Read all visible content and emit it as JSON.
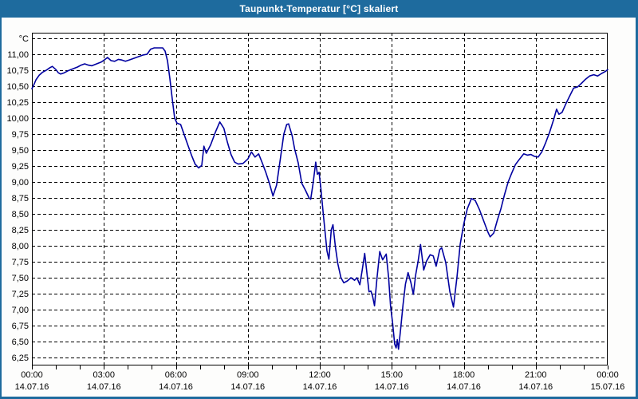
{
  "window": {
    "title": "Taupunkt-Temperatur [°C] skaliert",
    "chrome_color": "#1e6b9e",
    "background_color": "#fdfdfc"
  },
  "chart_data": {
    "type": "line",
    "title": "Taupunkt-Temperatur [°C] skaliert",
    "grid": "dashed",
    "legend_position": "none",
    "y_axis": {
      "unit_label": "°C",
      "min": 6.25,
      "max": 11.25,
      "tick_step": 0.25,
      "tick_values": [
        11.0,
        10.75,
        10.5,
        10.25,
        10.0,
        9.75,
        9.5,
        9.25,
        9.0,
        8.75,
        8.5,
        8.25,
        8.0,
        7.75,
        7.5,
        7.25,
        7.0,
        6.75,
        6.5,
        6.25
      ],
      "tick_labels": [
        "11,00",
        "10,75",
        "10,50",
        "10,25",
        "10,00",
        "9,75",
        "9,50",
        "9,25",
        "9,00",
        "8,75",
        "8,50",
        "8,25",
        "8,00",
        "7,75",
        "7,50",
        "7,25",
        "7,00",
        "6,75",
        "6,50",
        "6,25"
      ]
    },
    "x_axis": {
      "range_hours": [
        0,
        24
      ],
      "minor_tick_every_hours": 1,
      "major_tick_every_hours": 3,
      "ticks": [
        {
          "hour": 0,
          "time": "00:00",
          "date": "14.07.16"
        },
        {
          "hour": 3,
          "time": "03:00",
          "date": "14.07.16"
        },
        {
          "hour": 6,
          "time": "06:00",
          "date": "14.07.16"
        },
        {
          "hour": 9,
          "time": "09:00",
          "date": "14.07.16"
        },
        {
          "hour": 12,
          "time": "12:00",
          "date": "14.07.16"
        },
        {
          "hour": 15,
          "time": "15:00",
          "date": "14.07.16"
        },
        {
          "hour": 18,
          "time": "18:00",
          "date": "14.07.16"
        },
        {
          "hour": 21,
          "time": "21:00",
          "date": "14.07.16"
        },
        {
          "hour": 24,
          "time": "00:00",
          "date": "15.07.16"
        }
      ]
    },
    "series": [
      {
        "name": "Taupunkt-Temperatur",
        "color": "#0000a0",
        "points": [
          [
            0.0,
            10.46
          ],
          [
            0.08,
            10.52
          ],
          [
            0.17,
            10.6
          ],
          [
            0.3,
            10.67
          ],
          [
            0.45,
            10.72
          ],
          [
            0.6,
            10.75
          ],
          [
            0.75,
            10.79
          ],
          [
            0.85,
            10.81
          ],
          [
            1.0,
            10.76
          ],
          [
            1.1,
            10.71
          ],
          [
            1.2,
            10.69
          ],
          [
            1.35,
            10.71
          ],
          [
            1.5,
            10.74
          ],
          [
            1.7,
            10.77
          ],
          [
            1.9,
            10.8
          ],
          [
            2.05,
            10.83
          ],
          [
            2.2,
            10.85
          ],
          [
            2.35,
            10.83
          ],
          [
            2.5,
            10.82
          ],
          [
            2.7,
            10.85
          ],
          [
            2.9,
            10.88
          ],
          [
            3.05,
            10.92
          ],
          [
            3.15,
            10.95
          ],
          [
            3.3,
            10.9
          ],
          [
            3.45,
            10.89
          ],
          [
            3.6,
            10.92
          ],
          [
            3.75,
            10.91
          ],
          [
            3.9,
            10.89
          ],
          [
            4.05,
            10.91
          ],
          [
            4.2,
            10.93
          ],
          [
            4.35,
            10.95
          ],
          [
            4.5,
            10.97
          ],
          [
            4.65,
            10.99
          ],
          [
            4.8,
            11.0
          ],
          [
            4.95,
            11.08
          ],
          [
            5.1,
            11.1
          ],
          [
            5.3,
            11.1
          ],
          [
            5.45,
            11.1
          ],
          [
            5.55,
            11.05
          ],
          [
            5.65,
            10.9
          ],
          [
            5.75,
            10.62
          ],
          [
            5.85,
            10.3
          ],
          [
            5.95,
            10.0
          ],
          [
            6.05,
            9.92
          ],
          [
            6.2,
            9.9
          ],
          [
            6.35,
            9.74
          ],
          [
            6.5,
            9.58
          ],
          [
            6.65,
            9.42
          ],
          [
            6.8,
            9.28
          ],
          [
            6.95,
            9.22
          ],
          [
            7.08,
            9.26
          ],
          [
            7.17,
            9.56
          ],
          [
            7.27,
            9.45
          ],
          [
            7.45,
            9.58
          ],
          [
            7.65,
            9.78
          ],
          [
            7.83,
            9.94
          ],
          [
            8.0,
            9.84
          ],
          [
            8.15,
            9.62
          ],
          [
            8.3,
            9.43
          ],
          [
            8.45,
            9.31
          ],
          [
            8.6,
            9.28
          ],
          [
            8.8,
            9.29
          ],
          [
            9.0,
            9.36
          ],
          [
            9.15,
            9.47
          ],
          [
            9.3,
            9.39
          ],
          [
            9.45,
            9.44
          ],
          [
            9.6,
            9.3
          ],
          [
            9.75,
            9.15
          ],
          [
            9.9,
            8.98
          ],
          [
            10.05,
            8.78
          ],
          [
            10.2,
            8.95
          ],
          [
            10.35,
            9.35
          ],
          [
            10.5,
            9.75
          ],
          [
            10.62,
            9.9
          ],
          [
            10.7,
            9.91
          ],
          [
            10.85,
            9.72
          ],
          [
            10.95,
            9.52
          ],
          [
            11.1,
            9.3
          ],
          [
            11.25,
            8.98
          ],
          [
            11.4,
            8.87
          ],
          [
            11.55,
            8.75
          ],
          [
            11.62,
            8.73
          ],
          [
            11.72,
            8.98
          ],
          [
            11.83,
            9.31
          ],
          [
            11.9,
            9.12
          ],
          [
            11.97,
            9.15
          ],
          [
            12.05,
            8.88
          ],
          [
            12.15,
            8.48
          ],
          [
            12.3,
            7.92
          ],
          [
            12.38,
            7.79
          ],
          [
            12.48,
            8.25
          ],
          [
            12.55,
            8.33
          ],
          [
            12.65,
            7.98
          ],
          [
            12.75,
            7.72
          ],
          [
            12.88,
            7.5
          ],
          [
            13.0,
            7.42
          ],
          [
            13.15,
            7.45
          ],
          [
            13.3,
            7.5
          ],
          [
            13.45,
            7.46
          ],
          [
            13.55,
            7.5
          ],
          [
            13.67,
            7.39
          ],
          [
            13.77,
            7.62
          ],
          [
            13.87,
            7.88
          ],
          [
            13.97,
            7.55
          ],
          [
            14.05,
            7.28
          ],
          [
            14.13,
            7.29
          ],
          [
            14.2,
            7.21
          ],
          [
            14.28,
            7.06
          ],
          [
            14.38,
            7.48
          ],
          [
            14.5,
            7.91
          ],
          [
            14.62,
            7.78
          ],
          [
            14.77,
            7.87
          ],
          [
            14.87,
            7.5
          ],
          [
            14.95,
            7.06
          ],
          [
            15.03,
            6.8
          ],
          [
            15.12,
            6.46
          ],
          [
            15.18,
            6.4
          ],
          [
            15.23,
            6.53
          ],
          [
            15.28,
            6.38
          ],
          [
            15.37,
            6.7
          ],
          [
            15.47,
            7.08
          ],
          [
            15.57,
            7.4
          ],
          [
            15.68,
            7.58
          ],
          [
            15.8,
            7.42
          ],
          [
            15.9,
            7.24
          ],
          [
            16.0,
            7.55
          ],
          [
            16.1,
            7.76
          ],
          [
            16.2,
            8.02
          ],
          [
            16.33,
            7.62
          ],
          [
            16.45,
            7.76
          ],
          [
            16.6,
            7.86
          ],
          [
            16.73,
            7.84
          ],
          [
            16.85,
            7.68
          ],
          [
            17.0,
            7.94
          ],
          [
            17.08,
            7.97
          ],
          [
            17.25,
            7.74
          ],
          [
            17.42,
            7.28
          ],
          [
            17.57,
            7.04
          ],
          [
            17.72,
            7.52
          ],
          [
            17.85,
            8.02
          ],
          [
            18.0,
            8.34
          ],
          [
            18.15,
            8.58
          ],
          [
            18.32,
            8.74
          ],
          [
            18.48,
            8.71
          ],
          [
            18.65,
            8.57
          ],
          [
            18.82,
            8.4
          ],
          [
            19.0,
            8.22
          ],
          [
            19.1,
            8.14
          ],
          [
            19.25,
            8.2
          ],
          [
            19.4,
            8.4
          ],
          [
            19.55,
            8.58
          ],
          [
            19.7,
            8.8
          ],
          [
            19.85,
            9.0
          ],
          [
            20.0,
            9.14
          ],
          [
            20.15,
            9.27
          ],
          [
            20.33,
            9.36
          ],
          [
            20.5,
            9.44
          ],
          [
            20.65,
            9.42
          ],
          [
            20.8,
            9.43
          ],
          [
            20.95,
            9.4
          ],
          [
            21.1,
            9.39
          ],
          [
            21.25,
            9.47
          ],
          [
            21.42,
            9.62
          ],
          [
            21.58,
            9.78
          ],
          [
            21.75,
            9.98
          ],
          [
            21.87,
            10.14
          ],
          [
            21.97,
            10.06
          ],
          [
            22.1,
            10.09
          ],
          [
            22.25,
            10.22
          ],
          [
            22.42,
            10.35
          ],
          [
            22.58,
            10.47
          ],
          [
            22.75,
            10.49
          ],
          [
            22.92,
            10.55
          ],
          [
            23.08,
            10.61
          ],
          [
            23.25,
            10.66
          ],
          [
            23.42,
            10.68
          ],
          [
            23.58,
            10.66
          ],
          [
            23.75,
            10.7
          ],
          [
            23.9,
            10.73
          ],
          [
            24.0,
            10.76
          ]
        ]
      }
    ]
  }
}
